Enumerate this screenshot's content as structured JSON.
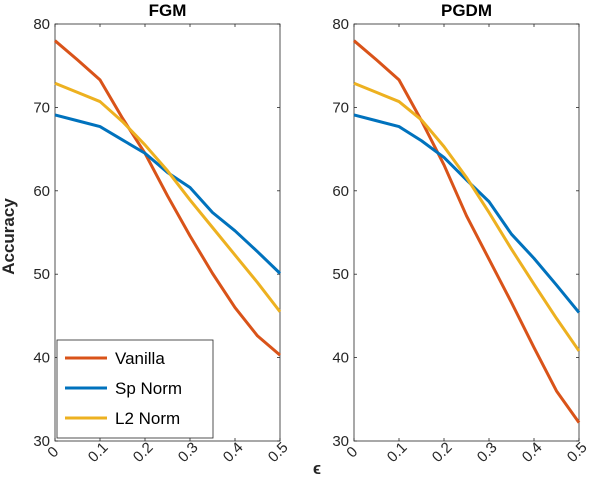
{
  "chart_data": [
    {
      "type": "line",
      "title": "FGM",
      "ylabel": "Accuracy",
      "xlabel": "",
      "xlim": [
        0,
        0.5
      ],
      "ylim": [
        30,
        80
      ],
      "xticks": [
        0,
        0.1,
        0.2,
        0.3,
        0.4,
        0.5
      ],
      "xtick_labels": [
        "0",
        "0.1",
        "0.2",
        "0.3",
        "0.4",
        "0.5"
      ],
      "yticks": [
        30,
        40,
        50,
        60,
        70,
        80
      ],
      "ytick_labels": [
        "30",
        "40",
        "50",
        "60",
        "70",
        "80"
      ],
      "grid": false,
      "legend": {
        "placement": "bottom-left"
      },
      "x": [
        0,
        0.05,
        0.1,
        0.15,
        0.2,
        0.25,
        0.3,
        0.35,
        0.4,
        0.45,
        0.5
      ],
      "series": [
        {
          "name": "Vanilla",
          "color": "#D95319",
          "values": [
            78.0,
            75.7,
            73.3,
            68.7,
            64.5,
            59.4,
            54.6,
            50.1,
            46.0,
            42.6,
            40.3
          ]
        },
        {
          "name": "Sp Norm",
          "color": "#0072BD",
          "values": [
            69.1,
            68.4,
            67.7,
            66.1,
            64.5,
            62.2,
            60.4,
            57.4,
            55.2,
            52.7,
            50.1
          ]
        },
        {
          "name": "L2 Norm",
          "color": "#EDB120",
          "values": [
            72.9,
            71.8,
            70.7,
            68.3,
            65.5,
            62.4,
            58.9,
            55.6,
            52.3,
            49.0,
            45.5
          ]
        }
      ]
    },
    {
      "type": "line",
      "title": "PGDM",
      "ylabel": "",
      "xlabel": "ϵ",
      "xlim": [
        0,
        0.5
      ],
      "ylim": [
        30,
        80
      ],
      "xticks": [
        0,
        0.1,
        0.2,
        0.3,
        0.4,
        0.5
      ],
      "xtick_labels": [
        "0",
        "0.1",
        "0.2",
        "0.3",
        "0.4",
        "0.5"
      ],
      "yticks": [
        30,
        40,
        50,
        60,
        70,
        80
      ],
      "ytick_labels": [
        "30",
        "40",
        "50",
        "60",
        "70",
        "80"
      ],
      "grid": false,
      "x": [
        0,
        0.05,
        0.1,
        0.15,
        0.2,
        0.25,
        0.3,
        0.35,
        0.4,
        0.45,
        0.5
      ],
      "series": [
        {
          "name": "Vanilla",
          "color": "#D95319",
          "values": [
            78.0,
            75.7,
            73.3,
            68.4,
            63.1,
            57.0,
            51.8,
            46.6,
            41.2,
            36.0,
            32.2
          ]
        },
        {
          "name": "Sp Norm",
          "color": "#0072BD",
          "values": [
            69.1,
            68.4,
            67.7,
            66.0,
            64.0,
            61.3,
            58.7,
            54.8,
            51.9,
            48.7,
            45.4
          ]
        },
        {
          "name": "L2 Norm",
          "color": "#EDB120",
          "values": [
            72.9,
            71.8,
            70.7,
            68.5,
            65.3,
            61.6,
            57.4,
            53.0,
            48.8,
            44.7,
            40.8
          ]
        }
      ]
    }
  ]
}
